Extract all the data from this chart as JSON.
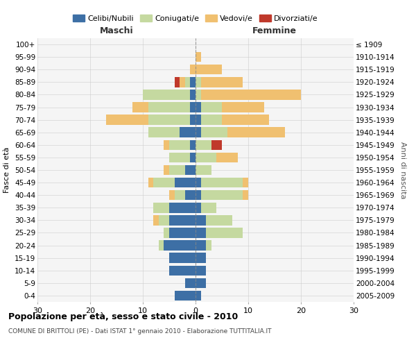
{
  "age_groups": [
    "100+",
    "95-99",
    "90-94",
    "85-89",
    "80-84",
    "75-79",
    "70-74",
    "65-69",
    "60-64",
    "55-59",
    "50-54",
    "45-49",
    "40-44",
    "35-39",
    "30-34",
    "25-29",
    "20-24",
    "15-19",
    "10-14",
    "5-9",
    "0-4"
  ],
  "birth_years": [
    "≤ 1909",
    "1910-1914",
    "1915-1919",
    "1920-1924",
    "1925-1929",
    "1930-1934",
    "1935-1939",
    "1940-1944",
    "1945-1949",
    "1950-1954",
    "1955-1959",
    "1960-1964",
    "1965-1969",
    "1970-1974",
    "1975-1979",
    "1980-1984",
    "1985-1989",
    "1990-1994",
    "1995-1999",
    "2000-2004",
    "2005-2009"
  ],
  "male_celibi": [
    0,
    0,
    0,
    1,
    1,
    1,
    1,
    3,
    1,
    1,
    2,
    4,
    2,
    5,
    5,
    5,
    6,
    5,
    5,
    2,
    4
  ],
  "male_coniugati": [
    0,
    0,
    0,
    1,
    9,
    8,
    8,
    6,
    4,
    4,
    3,
    4,
    2,
    3,
    2,
    1,
    1,
    0,
    0,
    0,
    0
  ],
  "male_vedovi": [
    0,
    0,
    1,
    1,
    0,
    3,
    8,
    0,
    1,
    0,
    1,
    1,
    1,
    0,
    1,
    0,
    0,
    0,
    0,
    0,
    0
  ],
  "male_divorziati": [
    0,
    0,
    0,
    1,
    0,
    0,
    0,
    0,
    0,
    0,
    0,
    0,
    0,
    0,
    0,
    0,
    0,
    0,
    0,
    0,
    0
  ],
  "female_celibi": [
    0,
    0,
    0,
    0,
    0,
    1,
    1,
    1,
    0,
    0,
    0,
    1,
    1,
    1,
    2,
    2,
    2,
    2,
    2,
    2,
    1
  ],
  "female_coniugati": [
    0,
    0,
    0,
    1,
    1,
    4,
    4,
    5,
    3,
    4,
    3,
    8,
    8,
    3,
    5,
    7,
    1,
    0,
    0,
    0,
    0
  ],
  "female_vedovi": [
    0,
    1,
    5,
    8,
    19,
    8,
    9,
    11,
    0,
    4,
    0,
    1,
    1,
    0,
    0,
    0,
    0,
    0,
    0,
    0,
    0
  ],
  "female_divorziati": [
    0,
    0,
    0,
    0,
    0,
    0,
    0,
    0,
    2,
    0,
    0,
    0,
    0,
    0,
    0,
    0,
    0,
    0,
    0,
    0,
    0
  ],
  "color_celibi": "#3d6fa5",
  "color_coniugati": "#c5d9a0",
  "color_vedovi": "#f0c070",
  "color_divorziati": "#c0392b",
  "title": "Popolazione per età, sesso e stato civile - 2010",
  "subtitle": "COMUNE DI BRITTOLI (PE) - Dati ISTAT 1° gennaio 2010 - Elaborazione TUTTITALIA.IT",
  "xlabel_left": "Maschi",
  "xlabel_right": "Femmine",
  "ylabel_left": "Fasce di età",
  "ylabel_right": "Anni di nascita",
  "xlim": 30,
  "legend_labels": [
    "Celibi/Nubili",
    "Coniugati/e",
    "Vedovi/e",
    "Divorziati/e"
  ],
  "maschi_color": "#333333",
  "femmine_color": "#333333",
  "bg_color": "#f5f5f5"
}
